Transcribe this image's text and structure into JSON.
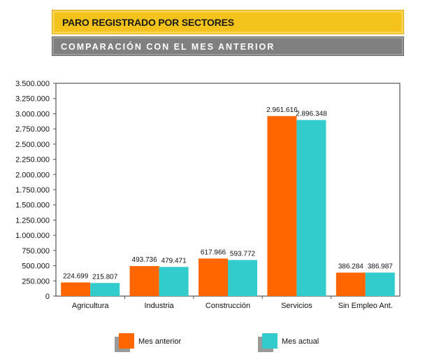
{
  "header": {
    "title": "PARO REGISTRADO POR SECTORES",
    "subtitle": "COMPARACIÓN CON EL MES ANTERIOR"
  },
  "colors": {
    "series_previous": "#ff6600",
    "series_current": "#33cccc",
    "axis": "#555555",
    "plot_border": "#333333"
  },
  "chart_data": {
    "type": "bar",
    "title": "PARO REGISTRADO POR SECTORES",
    "subtitle": "COMPARACIÓN CON EL MES ANTERIOR",
    "xlabel": "",
    "ylabel": "",
    "ylim": [
      0,
      3500000
    ],
    "y_ticks": [
      0,
      250000,
      500000,
      750000,
      1000000,
      1250000,
      1500000,
      1750000,
      2000000,
      2250000,
      2500000,
      2750000,
      3000000,
      3250000,
      3500000
    ],
    "y_tick_labels": [
      "0",
      "250.000",
      "500.000",
      "750.000",
      "1.000.000",
      "1.250.000",
      "1.500.000",
      "1.750.000",
      "2.000.000",
      "2.250.000",
      "2.500.000",
      "2.750.000",
      "3.000.000",
      "3.250.000",
      "3.500.000"
    ],
    "grid": false,
    "legend": "bottom",
    "categories": [
      "Agricultura",
      "Industria",
      "Construcción",
      "Servicios",
      "Sin Empleo Ant."
    ],
    "series": [
      {
        "name": "Mes anterior",
        "values": [
          224699,
          493736,
          617966,
          2961616,
          386284
        ],
        "labels": [
          "224.699",
          "493.736",
          "617.966",
          "2.961.616",
          "386.284"
        ]
      },
      {
        "name": "Mes actual",
        "values": [
          215807,
          479471,
          593772,
          2896348,
          386987
        ],
        "labels": [
          "215.807",
          "479.471",
          "593.772",
          "2.896.348",
          "386.987"
        ]
      }
    ]
  }
}
